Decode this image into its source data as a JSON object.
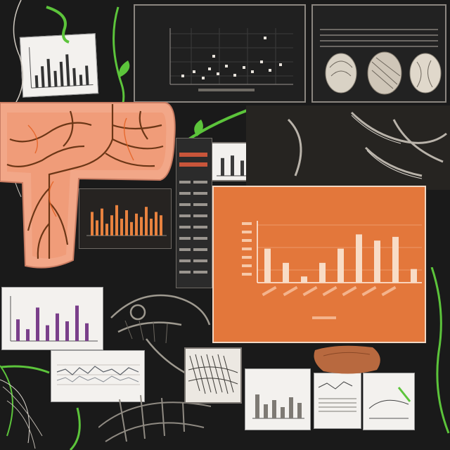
{
  "colors": {
    "background": "#141414",
    "orange_panel": "#e3773b",
    "tissue": "#f2a788",
    "vein": "#6b3616",
    "leaf_green": "#5cc43b",
    "bone": "#b9b3aa"
  },
  "panels": {
    "top_center_caption": "",
    "top_right_title": "",
    "orange_title_line1": "",
    "orange_title_line2": ""
  },
  "orange_chart": {
    "values": [
      0.55,
      0.32,
      0.1,
      0.32,
      0.55,
      0.78,
      0.68,
      0.74,
      0.22
    ],
    "ylim": [
      0,
      1
    ]
  },
  "mini_charts": {
    "top_left": [
      0.35,
      0.6,
      0.8,
      0.45,
      0.7,
      0.9,
      0.5,
      0.3,
      0.55
    ],
    "dark_orange": [
      0.7,
      0.45,
      0.8,
      0.35,
      0.6,
      0.9,
      0.5,
      0.75,
      0.4,
      0.65,
      0.55,
      0.85,
      0.5,
      0.7,
      0.6
    ],
    "purple": [
      0.55,
      0.3,
      0.85,
      0.4,
      0.7,
      0.5,
      0.9,
      0.45
    ],
    "center_white": [
      0.7,
      0.8,
      0.6,
      0.85,
      0.9,
      0.75
    ]
  }
}
